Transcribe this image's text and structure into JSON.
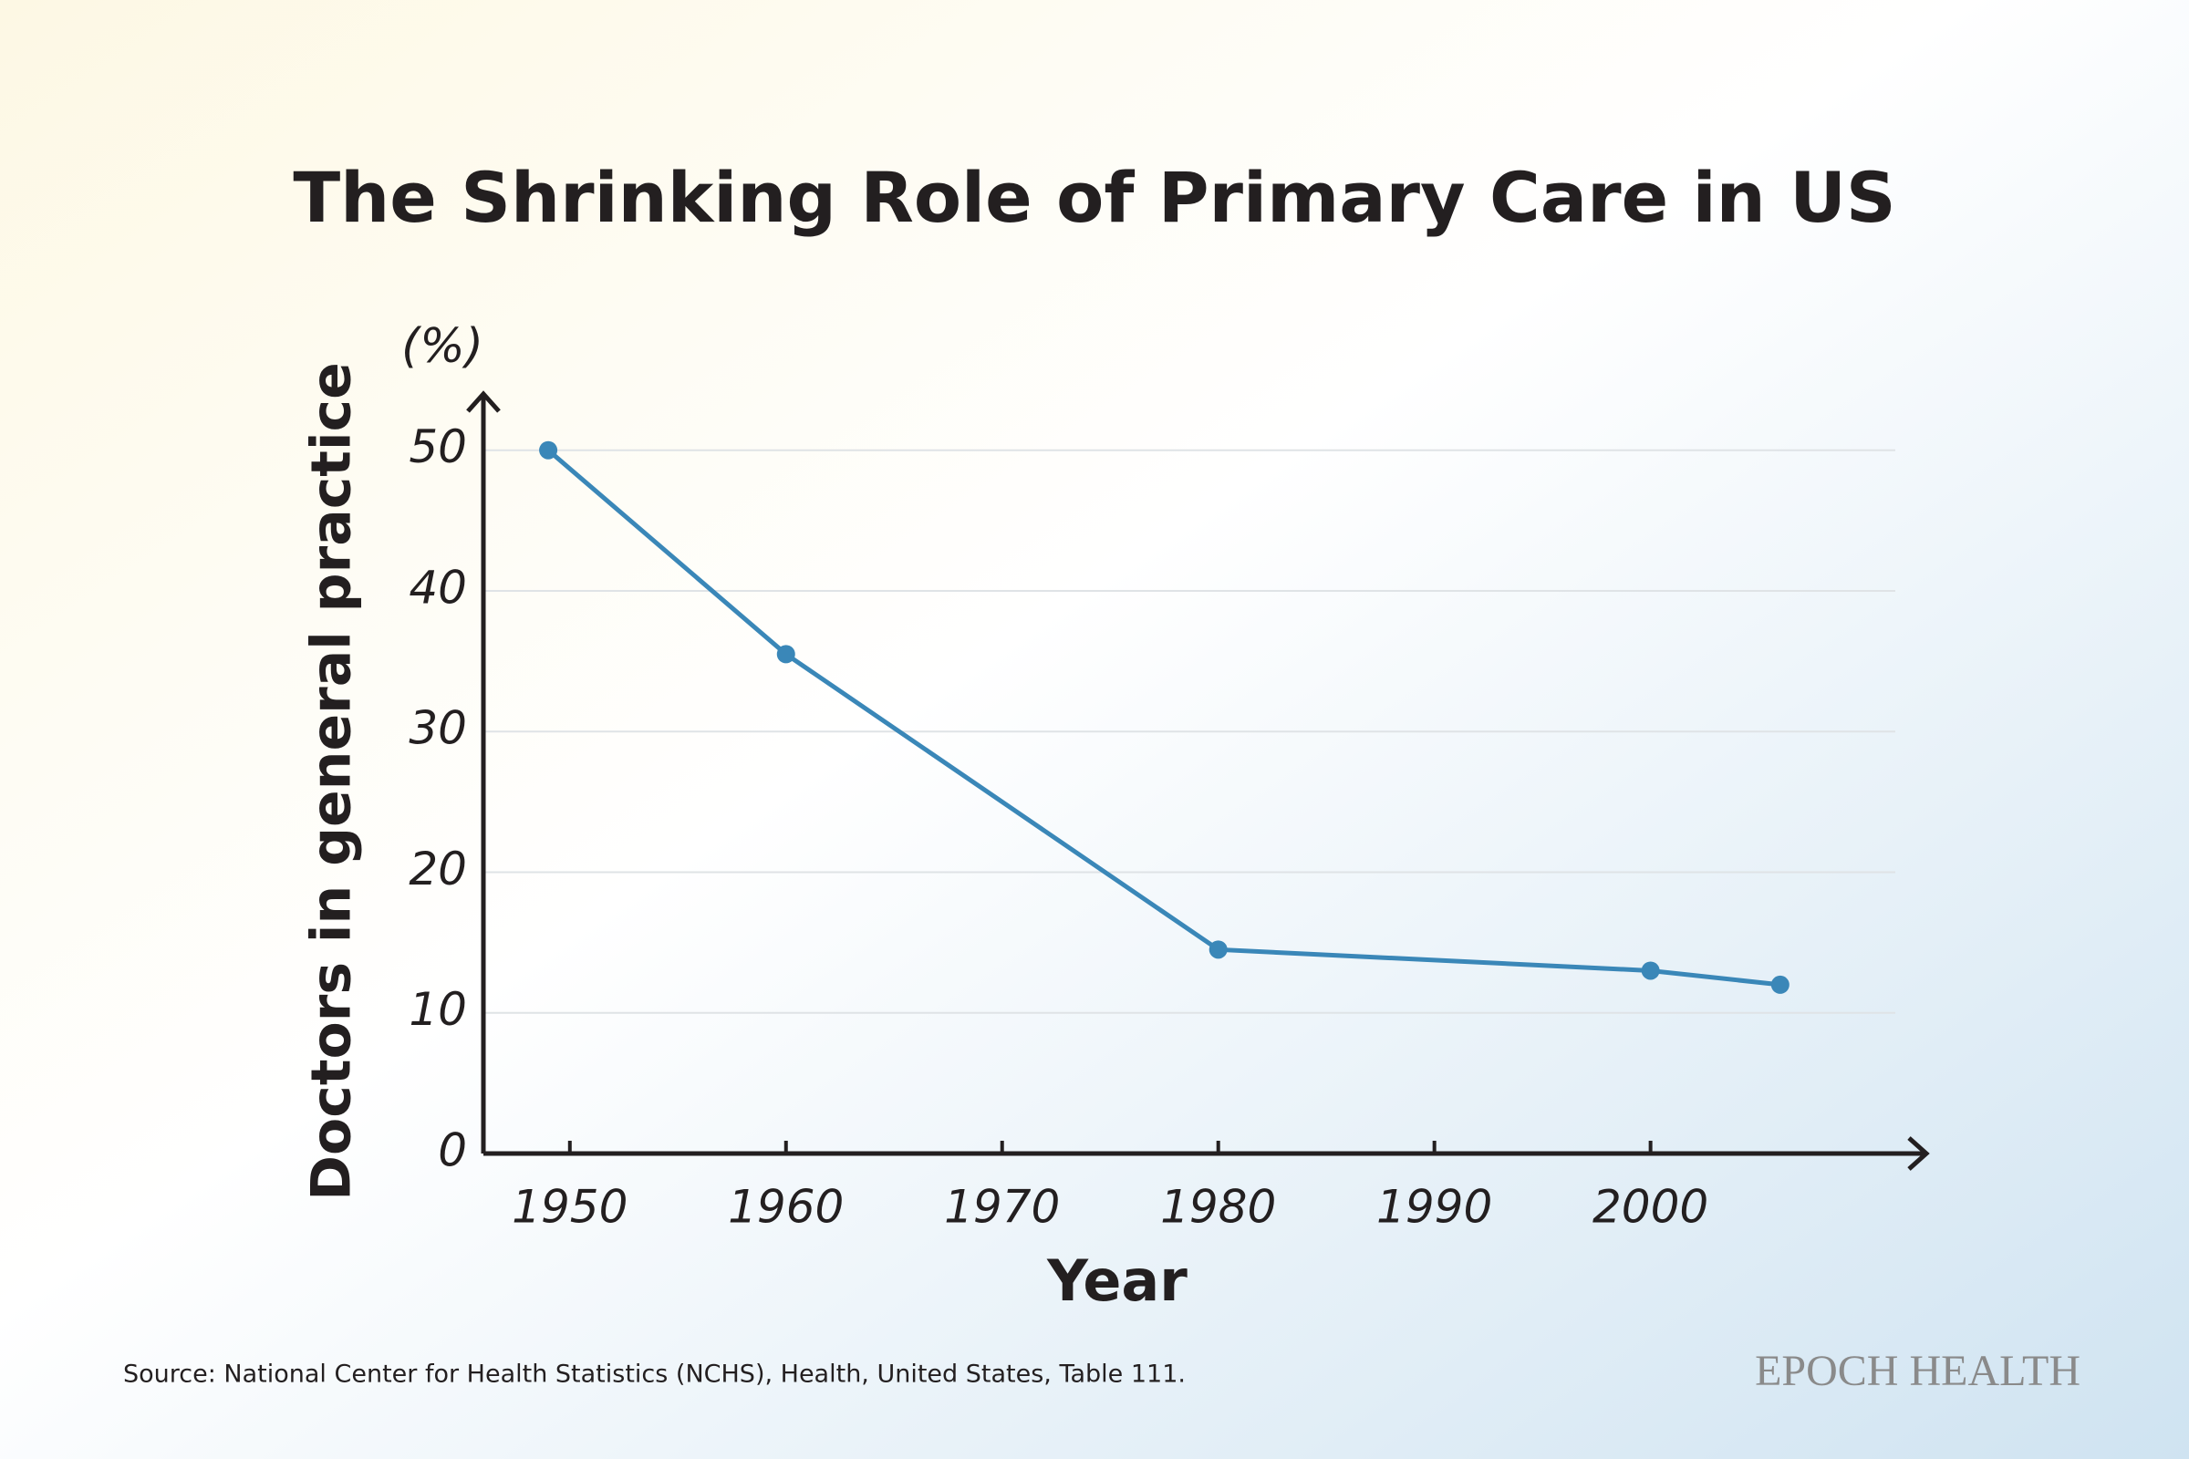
{
  "chart_data": {
    "type": "line",
    "title": "The Shrinking Role of Primary Care in US",
    "y_unit": "(%)",
    "ylabel": "Doctors in general practice",
    "xlabel": "Year",
    "x": [
      1949,
      1960,
      1980,
      2000,
      2006
    ],
    "series": [
      {
        "name": "Doctors in general practice",
        "color": "#3a87b8",
        "values": [
          50,
          35.5,
          14.5,
          13,
          12
        ]
      }
    ],
    "xlim": [
      1946,
      2012
    ],
    "xticks": [
      1950,
      1960,
      1970,
      1980,
      1990,
      2000
    ],
    "ylim": [
      0,
      54
    ],
    "yticks": [
      0,
      10,
      20,
      30,
      40,
      50
    ],
    "grid": true,
    "source": "Source: National Center for Health Statistics (NCHS), Health, United States, Table 111.",
    "brand": "EPOCH HEALTH"
  }
}
